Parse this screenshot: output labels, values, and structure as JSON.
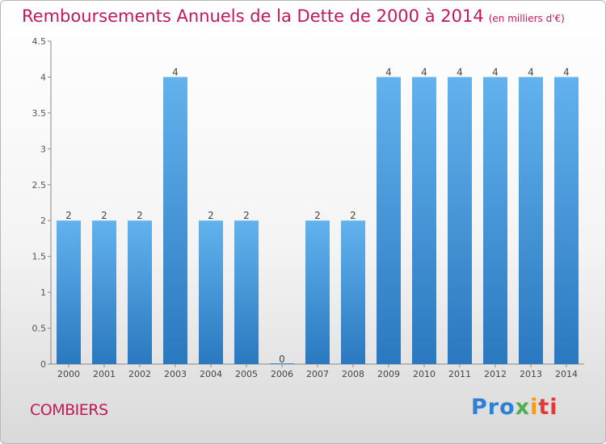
{
  "chart_data": {
    "type": "bar",
    "title": "Remboursements Annuels de la Dette de 2000 à 2014",
    "subtitle": "(en milliers d'€)",
    "categories": [
      "2000",
      "2001",
      "2002",
      "2003",
      "2004",
      "2005",
      "2006",
      "2007",
      "2008",
      "2009",
      "2010",
      "2011",
      "2012",
      "2013",
      "2014"
    ],
    "values": [
      2,
      2,
      2,
      4,
      2,
      2,
      0,
      2,
      2,
      4,
      4,
      4,
      4,
      4,
      4
    ],
    "ylim": [
      0,
      4.5
    ],
    "yticks": [
      "0",
      "0.5",
      "1",
      "1.5",
      "2",
      "2.5",
      "3",
      "3.5",
      "4",
      "4.5"
    ],
    "grid": false,
    "bar_color": "#3d95d8"
  },
  "place": "COMBIERS",
  "logo": {
    "p1": "Pro",
    "p2": "x",
    "p3": "i",
    "p4": "ti"
  }
}
